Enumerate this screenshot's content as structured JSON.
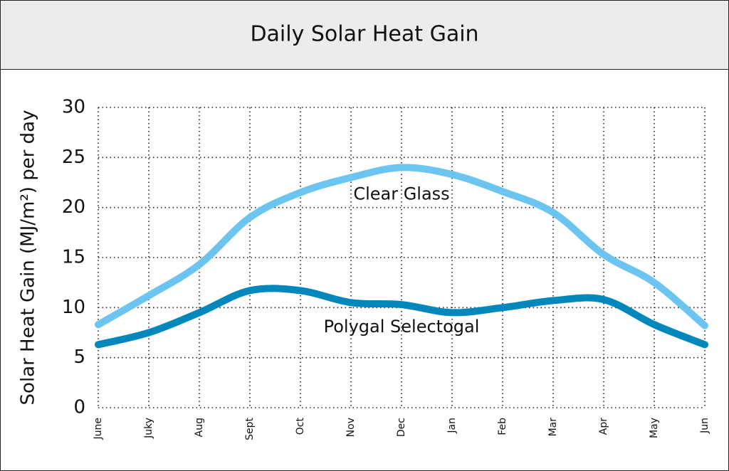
{
  "chart_data": {
    "type": "line",
    "title": "Daily Solar Heat Gain",
    "y_label": "Solar Heat Gain (MJ/m²) per day",
    "categories": [
      "June",
      "Juky",
      "Aug",
      "Sept",
      "Oct",
      "Nov",
      "Dec",
      "Jan",
      "Feb",
      "Mar",
      "Apr",
      "May",
      "Jun"
    ],
    "series": [
      {
        "name": "Clear Glass",
        "color": "#6cc5f1",
        "values": [
          8.3,
          11.2,
          14.3,
          19,
          21.5,
          23,
          24,
          23.3,
          21.6,
          19.5,
          15.3,
          12.5,
          8.2
        ]
      },
      {
        "name": "Polygal Selectogal",
        "color": "#0088bd",
        "values": [
          6.3,
          7.5,
          9.5,
          11.7,
          11.7,
          10.5,
          10.3,
          9.5,
          10,
          10.7,
          10.8,
          8.3,
          6.3
        ]
      }
    ],
    "ylim": [
      0,
      30
    ],
    "yticks": [
      0,
      5,
      10,
      15,
      20,
      25,
      30
    ],
    "grid": true
  }
}
